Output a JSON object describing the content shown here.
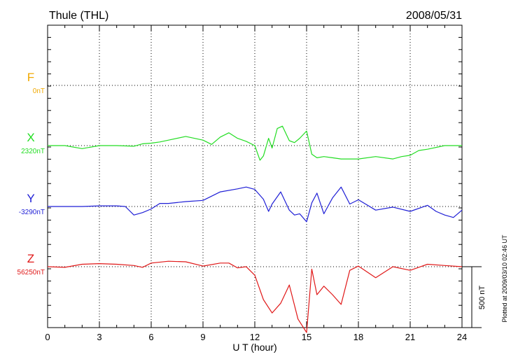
{
  "header": {
    "station": "Thule (THL)",
    "date": "2008/05/31"
  },
  "side_note": "Plotted at 2009/03/10 02:46 UT",
  "scale_label": "500 nT",
  "chart_data": {
    "type": "line",
    "xlabel": "U T (hour)",
    "ylabel": "",
    "xlim": [
      0,
      24
    ],
    "x_ticks": [
      0,
      3,
      6,
      9,
      12,
      15,
      18,
      21,
      24
    ],
    "grid": true,
    "scale_bar_nT": 500,
    "series": [
      {
        "name": "F",
        "baseline_label": "0nT",
        "color": "#f0a800",
        "x": [],
        "values": []
      },
      {
        "name": "X",
        "baseline_label": "2320nT",
        "color": "#22dd22",
        "x": [
          0,
          1,
          2,
          3,
          4,
          5,
          5.5,
          6,
          6.5,
          7,
          8,
          9,
          9.5,
          10,
          10.5,
          11,
          11.5,
          12,
          12.3,
          12.5,
          12.8,
          13,
          13.3,
          13.6,
          14,
          14.3,
          14.6,
          15,
          15.3,
          15.6,
          16,
          16.5,
          17,
          18,
          19,
          20,
          20.5,
          21,
          21.5,
          22,
          23,
          24
        ],
        "values": [
          0,
          0,
          -25,
          0,
          0,
          -5,
          15,
          20,
          30,
          45,
          75,
          45,
          10,
          70,
          105,
          60,
          35,
          0,
          -120,
          -85,
          60,
          -20,
          140,
          160,
          40,
          25,
          60,
          120,
          -70,
          -100,
          -90,
          -100,
          -110,
          -110,
          -90,
          -110,
          -90,
          -80,
          -40,
          -30,
          0,
          0
        ]
      },
      {
        "name": "Y",
        "baseline_label": "-3290nT",
        "color": "#1f1fd6",
        "x": [
          0,
          1,
          2,
          3,
          4,
          4.5,
          5,
          5.5,
          6,
          6.5,
          7,
          8,
          9,
          10,
          11,
          11.5,
          12,
          12.5,
          12.8,
          13,
          13.5,
          14,
          14.3,
          14.6,
          15,
          15.3,
          15.6,
          16,
          16.5,
          17,
          17.5,
          18,
          19,
          20,
          21,
          22,
          22.5,
          23,
          23.5,
          24
        ],
        "values": [
          0,
          0,
          0,
          5,
          5,
          0,
          -70,
          -50,
          -20,
          25,
          25,
          40,
          50,
          120,
          145,
          160,
          140,
          60,
          -40,
          20,
          120,
          -30,
          -70,
          -60,
          -125,
          30,
          110,
          -60,
          70,
          160,
          20,
          55,
          -30,
          -5,
          -40,
          10,
          -40,
          -70,
          -90,
          -30
        ]
      },
      {
        "name": "Z",
        "baseline_label": "56250nT",
        "color": "#e01818",
        "x": [
          0,
          1,
          2,
          3,
          4,
          5,
          5.5,
          6,
          7,
          8,
          9,
          10,
          10.5,
          11,
          11.5,
          12,
          12.5,
          13,
          13.5,
          14,
          14.5,
          15,
          15.3,
          15.6,
          16,
          16.5,
          17,
          17.5,
          18,
          19,
          20,
          21,
          22,
          23,
          24
        ],
        "values": [
          0,
          -5,
          20,
          25,
          20,
          10,
          -5,
          30,
          45,
          40,
          5,
          30,
          30,
          -10,
          0,
          -70,
          -270,
          -380,
          -300,
          -150,
          -430,
          -540,
          -20,
          -230,
          -160,
          -230,
          -310,
          -30,
          5,
          -90,
          0,
          -30,
          20,
          10,
          0
        ]
      }
    ]
  }
}
